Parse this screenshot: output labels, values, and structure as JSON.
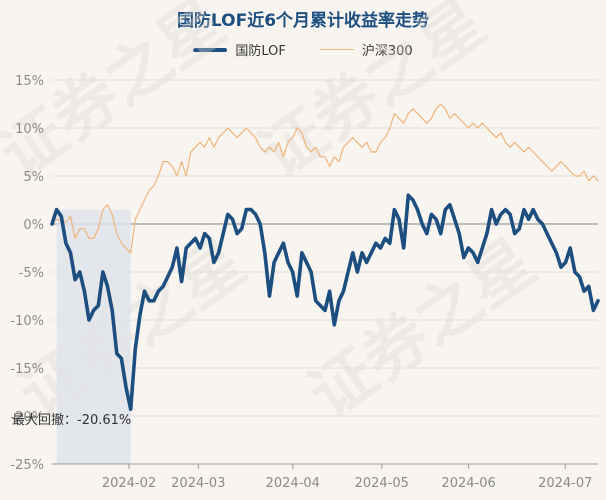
{
  "chart_data": {
    "type": "line",
    "title": "国防LOF近6个月累计收益率走势",
    "ylim": [
      -25,
      15
    ],
    "yticks": [
      15,
      10,
      5,
      0,
      -5,
      -10,
      -15,
      -20,
      -25
    ],
    "ytick_labels": [
      "15%",
      "10%",
      "5%",
      "0%",
      "-5%",
      "-10%",
      "-15%",
      "-20%",
      "-25%"
    ],
    "xticks": [
      "2024-02",
      "2024-03",
      "2024-04",
      "2024-05",
      "2024-06",
      "2024-07"
    ],
    "grid": true,
    "legend_placement": "top-center",
    "annotation": "最大回撤：-20.61%",
    "watermark_text": "证券之星",
    "series": [
      {
        "name": "国防LOF",
        "color": "#1d4e80",
        "values": [
          0.0,
          1.5,
          0.8,
          -2.0,
          -3.0,
          -5.8,
          -5.0,
          -7.0,
          -10.0,
          -9.0,
          -8.5,
          -5.0,
          -6.5,
          -9.0,
          -13.5,
          -14.0,
          -17.0,
          -19.3,
          -13.0,
          -9.5,
          -7.0,
          -8.0,
          -8.0,
          -7.0,
          -6.5,
          -5.5,
          -4.5,
          -2.5,
          -6.0,
          -2.5,
          -2.0,
          -1.5,
          -2.5,
          -1.0,
          -1.5,
          -4.0,
          -3.0,
          -1.0,
          1.0,
          0.5,
          -1.0,
          -0.5,
          1.5,
          1.5,
          1.0,
          0.0,
          -3.0,
          -7.5,
          -4.0,
          -3.0,
          -2.0,
          -4.0,
          -5.0,
          -7.5,
          -3.0,
          -4.0,
          -5.0,
          -8.0,
          -8.5,
          -9.0,
          -7.0,
          -10.5,
          -8.0,
          -7.0,
          -5.0,
          -3.0,
          -5.0,
          -3.0,
          -4.0,
          -3.0,
          -2.0,
          -2.5,
          -1.5,
          -2.0,
          1.5,
          0.5,
          -2.5,
          3.0,
          2.5,
          1.5,
          0.0,
          -1.0,
          1.0,
          0.5,
          -1.0,
          1.5,
          2.0,
          0.5,
          -1.0,
          -3.5,
          -2.5,
          -3.0,
          -4.0,
          -2.5,
          -1.0,
          1.5,
          0.0,
          1.0,
          1.5,
          1.0,
          -1.0,
          -0.5,
          1.5,
          0.5,
          1.5,
          0.5,
          0.0,
          -1.0,
          -2.0,
          -3.0,
          -4.5,
          -4.0,
          -2.5,
          -5.0,
          -5.5,
          -7.0,
          -6.5,
          -9.0,
          -8.0
        ]
      },
      {
        "name": "沪深300",
        "color": "#f0b47a",
        "values": [
          0.0,
          0.5,
          0.3,
          0.2,
          0.8,
          -1.5,
          -0.5,
          -0.5,
          -1.5,
          -1.5,
          -0.5,
          1.5,
          2.0,
          1.0,
          -1.0,
          -2.0,
          -2.5,
          -3.0,
          0.5,
          1.5,
          2.5,
          3.5,
          4.0,
          5.0,
          6.5,
          6.5,
          6.0,
          5.0,
          6.5,
          5.0,
          7.5,
          8.0,
          8.5,
          8.0,
          9.0,
          8.0,
          9.0,
          9.5,
          10.0,
          9.5,
          9.0,
          9.5,
          10.0,
          9.5,
          9.0,
          8.0,
          7.5,
          8.0,
          7.5,
          8.5,
          7.0,
          8.5,
          9.0,
          10.0,
          9.5,
          8.0,
          7.5,
          8.0,
          7.0,
          7.0,
          6.0,
          7.0,
          6.5,
          8.0,
          8.5,
          9.0,
          8.5,
          8.0,
          8.5,
          7.5,
          7.5,
          8.5,
          9.0,
          10.0,
          11.5,
          11.0,
          10.5,
          11.5,
          12.0,
          11.5,
          11.0,
          10.5,
          11.0,
          12.0,
          12.5,
          12.0,
          11.0,
          11.5,
          11.0,
          10.5,
          10.0,
          10.5,
          10.0,
          10.5,
          10.0,
          9.5,
          9.0,
          9.5,
          8.5,
          8.0,
          8.5,
          8.0,
          7.5,
          8.0,
          7.5,
          7.0,
          6.5,
          6.0,
          5.5,
          6.0,
          6.5,
          6.0,
          5.5,
          5.0,
          5.0,
          5.5,
          4.5,
          5.0,
          4.5
        ]
      }
    ],
    "drawdown_zone_color": "#dfe3ea"
  }
}
